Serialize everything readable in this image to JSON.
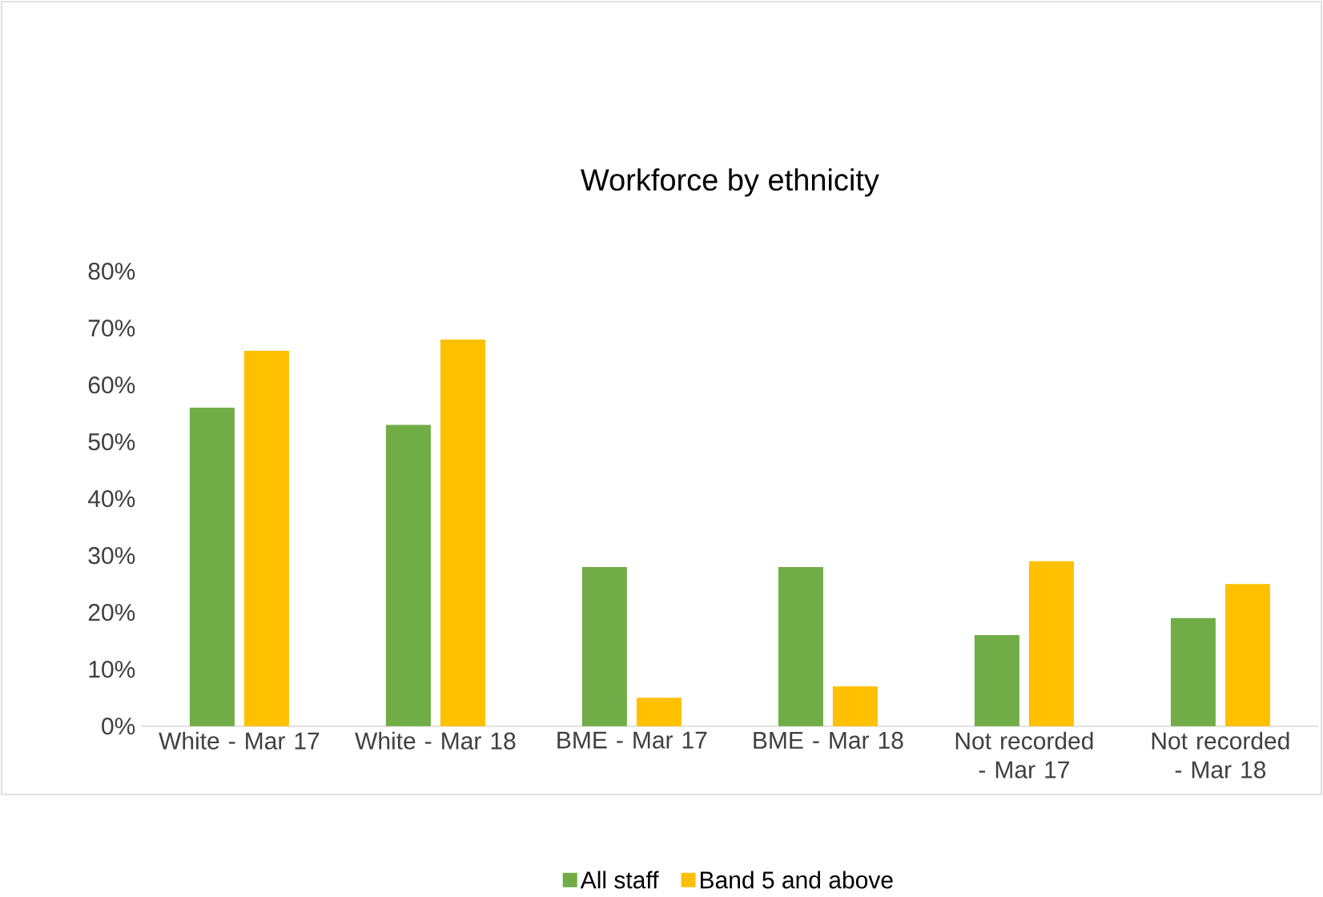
{
  "chart_data": {
    "type": "bar",
    "title": "Workforce by ethnicity",
    "categories": [
      "White - Mar 17",
      "White - Mar 18",
      "BME - Mar 17",
      "BME - Mar 18",
      "Not recorded - Mar 17",
      "Not recorded - Mar 18"
    ],
    "series": [
      {
        "name": "All staff",
        "color": "#70ad47",
        "values": [
          56,
          53,
          28,
          28,
          16,
          19
        ]
      },
      {
        "name": "Band 5 and above",
        "color": "#ffc000",
        "values": [
          66,
          68,
          5,
          7,
          29,
          25
        ]
      }
    ],
    "ylim": [
      0,
      80
    ],
    "yticks": [
      {
        "value": 0,
        "label": "0%"
      },
      {
        "value": 10,
        "label": "10%"
      },
      {
        "value": 20,
        "label": "20%"
      },
      {
        "value": 30,
        "label": "30%"
      },
      {
        "value": 40,
        "label": "40%"
      },
      {
        "value": 50,
        "label": "50%"
      },
      {
        "value": 60,
        "label": "60%"
      },
      {
        "value": 70,
        "label": "70%"
      },
      {
        "value": 80,
        "label": "80%"
      }
    ],
    "legend": "bottom"
  }
}
